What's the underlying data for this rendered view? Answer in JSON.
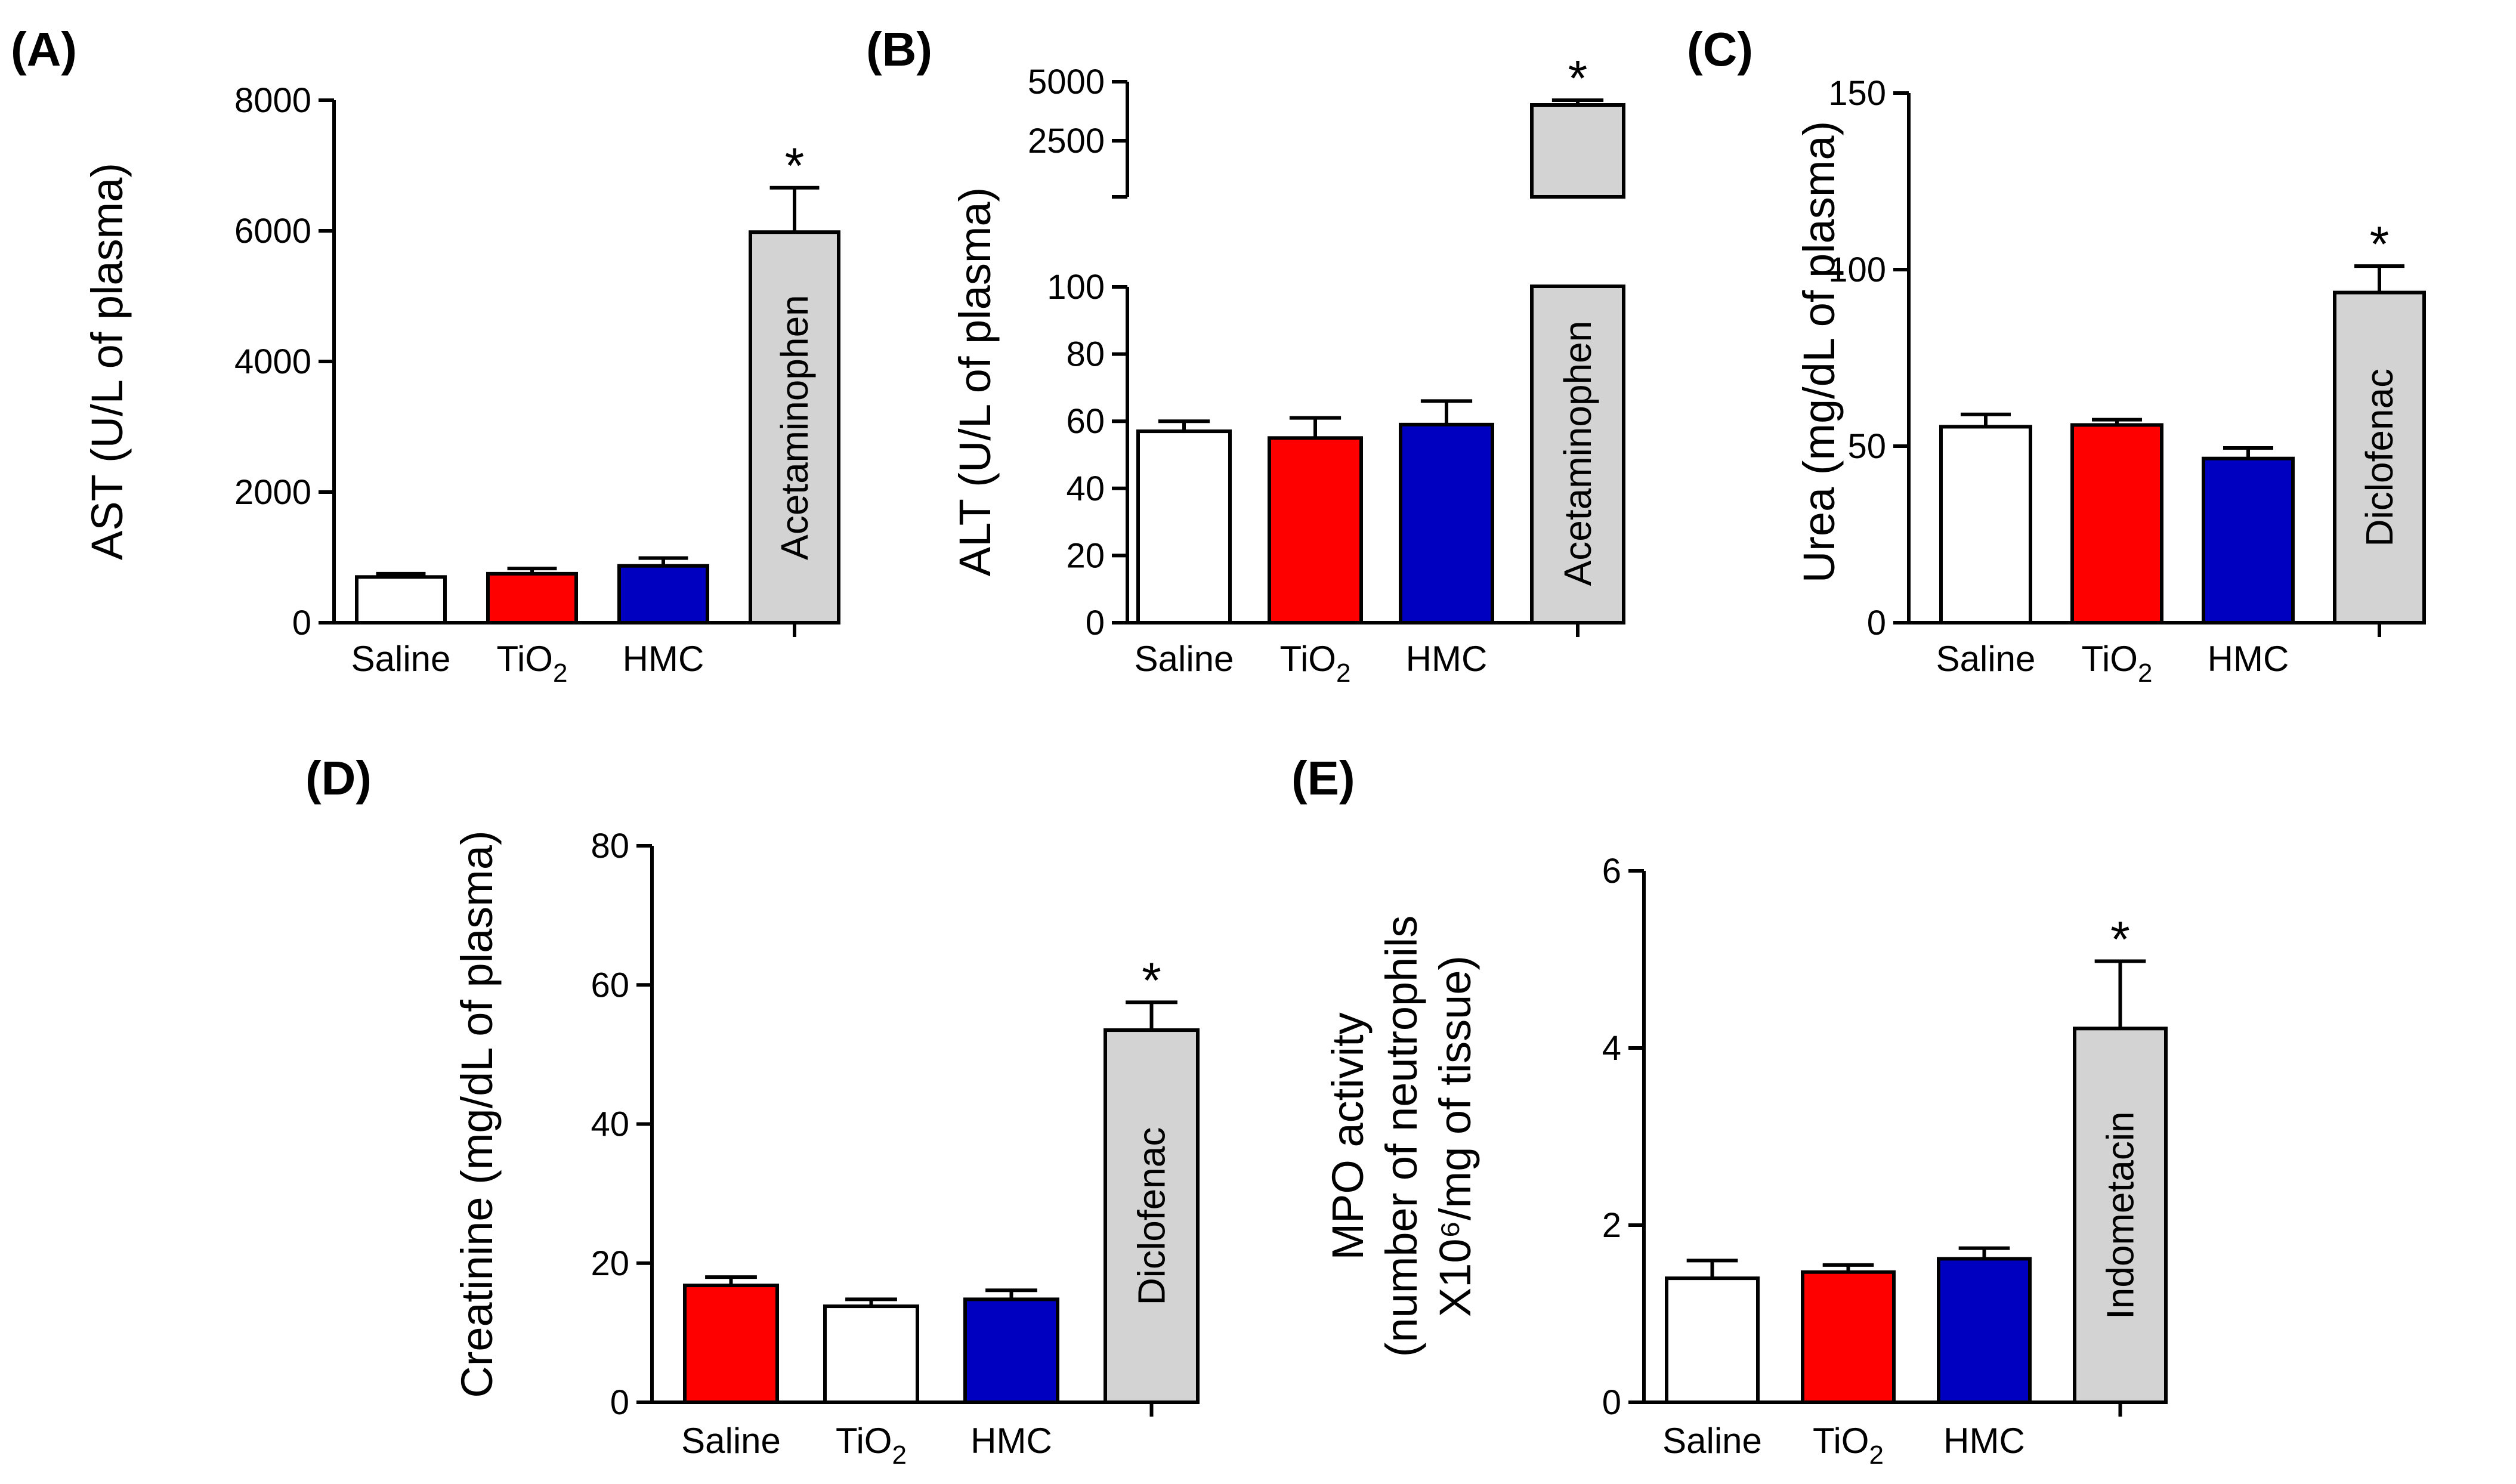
{
  "chart_data": [
    {
      "type": "bar",
      "panel": "(A)",
      "ylabel": "AST (U/L of plasma)",
      "ylim": [
        0,
        8000
      ],
      "yticks": [
        "0",
        "2000",
        "4000",
        "6000",
        "8000"
      ],
      "categories": [
        "Saline",
        "TiO2",
        "HMC",
        ""
      ],
      "values": [
        700,
        750,
        870,
        5980
      ],
      "errors": [
        50,
        80,
        120,
        680
      ],
      "colors": [
        "#ffffff",
        "#ff0000",
        "#0000c0",
        "#d3d3d3"
      ],
      "bar_label": "Acetaminophen",
      "significance": "*"
    },
    {
      "type": "bar",
      "panel": "(B)",
      "ylabel": "ALT (U/L of plasma)",
      "ylim": [
        0,
        100
      ],
      "yticks": [
        "0",
        "20",
        "40",
        "60",
        "80",
        "100"
      ],
      "upper_yticks": [
        "2500",
        "5000"
      ],
      "axis_break": true,
      "categories": [
        "Saline",
        "TiO2",
        "HMC",
        ""
      ],
      "values": [
        57,
        55,
        59,
        4100
      ],
      "errors": [
        3,
        6,
        7,
        150
      ],
      "colors": [
        "#ffffff",
        "#ff0000",
        "#0000c0",
        "#d3d3d3"
      ],
      "bar_label": "Acetaminophen",
      "significance": "*"
    },
    {
      "type": "bar",
      "panel": "(C)",
      "ylabel": "Urea (mg/dL of plasma)",
      "ylim": [
        0,
        150
      ],
      "yticks": [
        "0",
        "50",
        "100",
        "150"
      ],
      "categories": [
        "Saline",
        "TiO2",
        "HMC",
        ""
      ],
      "values": [
        55.5,
        56,
        46.5,
        93.5
      ],
      "errors": [
        3.5,
        1.5,
        3,
        7.5
      ],
      "colors": [
        "#ffffff",
        "#ff0000",
        "#0000c0",
        "#d3d3d3"
      ],
      "bar_label": "Diclofenac",
      "significance": "*"
    },
    {
      "type": "bar",
      "panel": "(D)",
      "ylabel": "Creatinine (mg/dL of plasma)",
      "ylim": [
        0,
        80
      ],
      "yticks": [
        "0",
        "20",
        "40",
        "60",
        "80"
      ],
      "categories": [
        "Saline",
        "TiO2",
        "HMC",
        ""
      ],
      "values": [
        16.8,
        13.8,
        14.8,
        53.5
      ],
      "errors": [
        1.2,
        1.0,
        1.3,
        4.0
      ],
      "colors": [
        "#ff0000",
        "#ffffff",
        "#0000c0",
        "#d3d3d3"
      ],
      "bar_label": "Diclofenac",
      "significance": "*"
    },
    {
      "type": "bar",
      "panel": "(E)",
      "ylabel_lines": [
        "MPO activity",
        "(number of neutrophils",
        "X10⁶/mg of tissue)"
      ],
      "ylim": [
        0,
        6
      ],
      "yticks": [
        "0",
        "2",
        "4",
        "6"
      ],
      "categories": [
        "Saline",
        "TiO2",
        "HMC",
        ""
      ],
      "values": [
        1.4,
        1.47,
        1.62,
        4.22
      ],
      "errors": [
        0.2,
        0.08,
        0.12,
        0.76
      ],
      "colors": [
        "#ffffff",
        "#ff0000",
        "#0000c0",
        "#d3d3d3"
      ],
      "bar_label": "Indometacin",
      "significance": "*"
    }
  ]
}
